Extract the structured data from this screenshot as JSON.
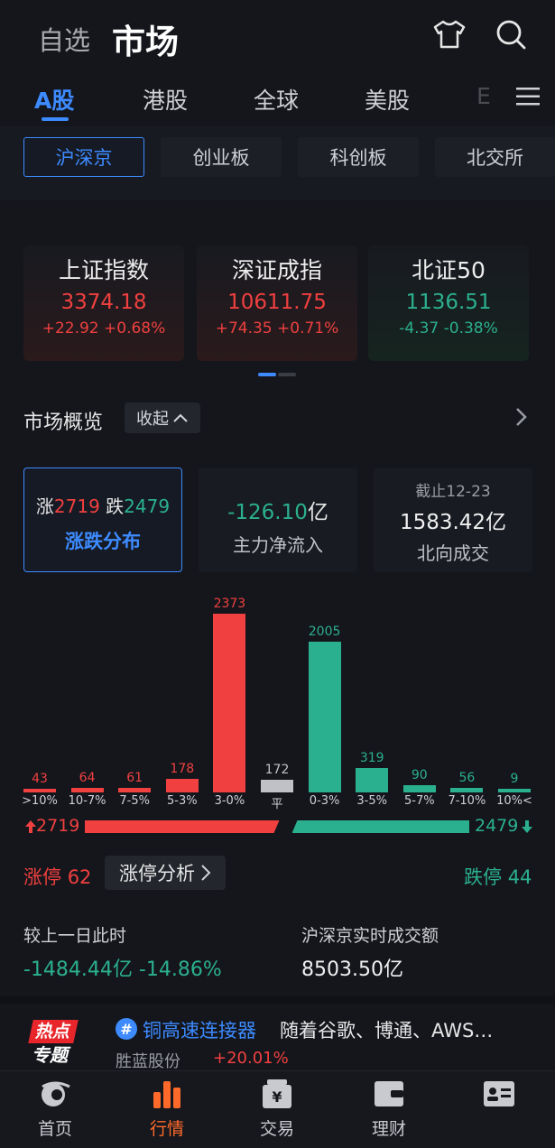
{
  "header": {
    "tab_watchlist": "自选",
    "tab_market": "市场"
  },
  "market_tabs": [
    {
      "label": "A股"
    },
    {
      "label": "港股"
    },
    {
      "label": "全球"
    },
    {
      "label": "美股"
    },
    {
      "label": "E"
    }
  ],
  "sub_tabs": [
    {
      "label": "沪深京"
    },
    {
      "label": "创业板"
    },
    {
      "label": "科创板"
    },
    {
      "label": "北交所"
    }
  ],
  "indices": [
    {
      "name": "上证指数",
      "price": "3374.18",
      "change": "+22.92 +0.68%"
    },
    {
      "name": "深证成指",
      "price": "10611.75",
      "change": "+74.35 +0.71%"
    },
    {
      "name": "北证50",
      "price": "1136.51",
      "change": "-4.37 -0.38%"
    }
  ],
  "overview": {
    "title": "市场概览",
    "collapse": "收起",
    "up_label": "涨",
    "up_count": "2719",
    "down_label": "跌",
    "down_count": "2479",
    "dist_label": "涨跌分布",
    "flow_value": "-126.10",
    "flow_unit": "亿",
    "flow_label": "主力净流入",
    "north_date": "截止12-23",
    "north_value": "1583.42亿",
    "north_label": "北向成交"
  },
  "chart_data": {
    "type": "bar",
    "categories": [
      ">10%",
      "10-7%",
      "7-5%",
      "5-3%",
      "3-0%",
      "平",
      "0-3%",
      "3-5%",
      "5-7%",
      "7-10%",
      "10%<"
    ],
    "values": [
      43,
      64,
      61,
      178,
      2373,
      172,
      2005,
      319,
      90,
      56,
      9
    ],
    "colors": [
      "#f0403f",
      "#f0403f",
      "#f0403f",
      "#f0403f",
      "#f0403f",
      "#bfc1c6",
      "#2bb08f",
      "#2bb08f",
      "#2bb08f",
      "#2bb08f",
      "#2bb08f"
    ],
    "label_colors": [
      "#f0403f",
      "#f0403f",
      "#f0403f",
      "#f0403f",
      "#f0403f",
      "#bfc1c6",
      "#2bb08f",
      "#2bb08f",
      "#2bb08f",
      "#2bb08f",
      "#2bb08f"
    ],
    "ylim": [
      0,
      2373
    ]
  },
  "breadth": {
    "up_total": "2719",
    "down_total": "2479",
    "up_value": 2719,
    "down_value": 2479
  },
  "limits": {
    "up_label": "涨停",
    "up_count": "62",
    "analysis": "涨停分析",
    "down_label": "跌停",
    "down_count": "44"
  },
  "turnover": {
    "compare_label": "较上一日此时",
    "compare_value": "-1484.44亿 -14.86%",
    "realtime_label": "沪深京实时成交额",
    "realtime_value": "8503.50亿"
  },
  "hot_topic": {
    "logo_line1": "热点",
    "logo_line2": "专题",
    "hash": "#",
    "title": "铜高速连接器",
    "desc": "随着谷歌、博通、AWS…",
    "stock": "胜蓝股份",
    "stock_change": "+20.01%"
  },
  "bottom_nav": [
    {
      "label": "首页"
    },
    {
      "label": "行情"
    },
    {
      "label": "交易"
    },
    {
      "label": "理财"
    },
    {
      "label": ""
    }
  ],
  "colors": {
    "accent": "#3d8bff",
    "up": "#f0403f",
    "down": "#2bb08f",
    "nav_active": "#ff6a2b"
  }
}
